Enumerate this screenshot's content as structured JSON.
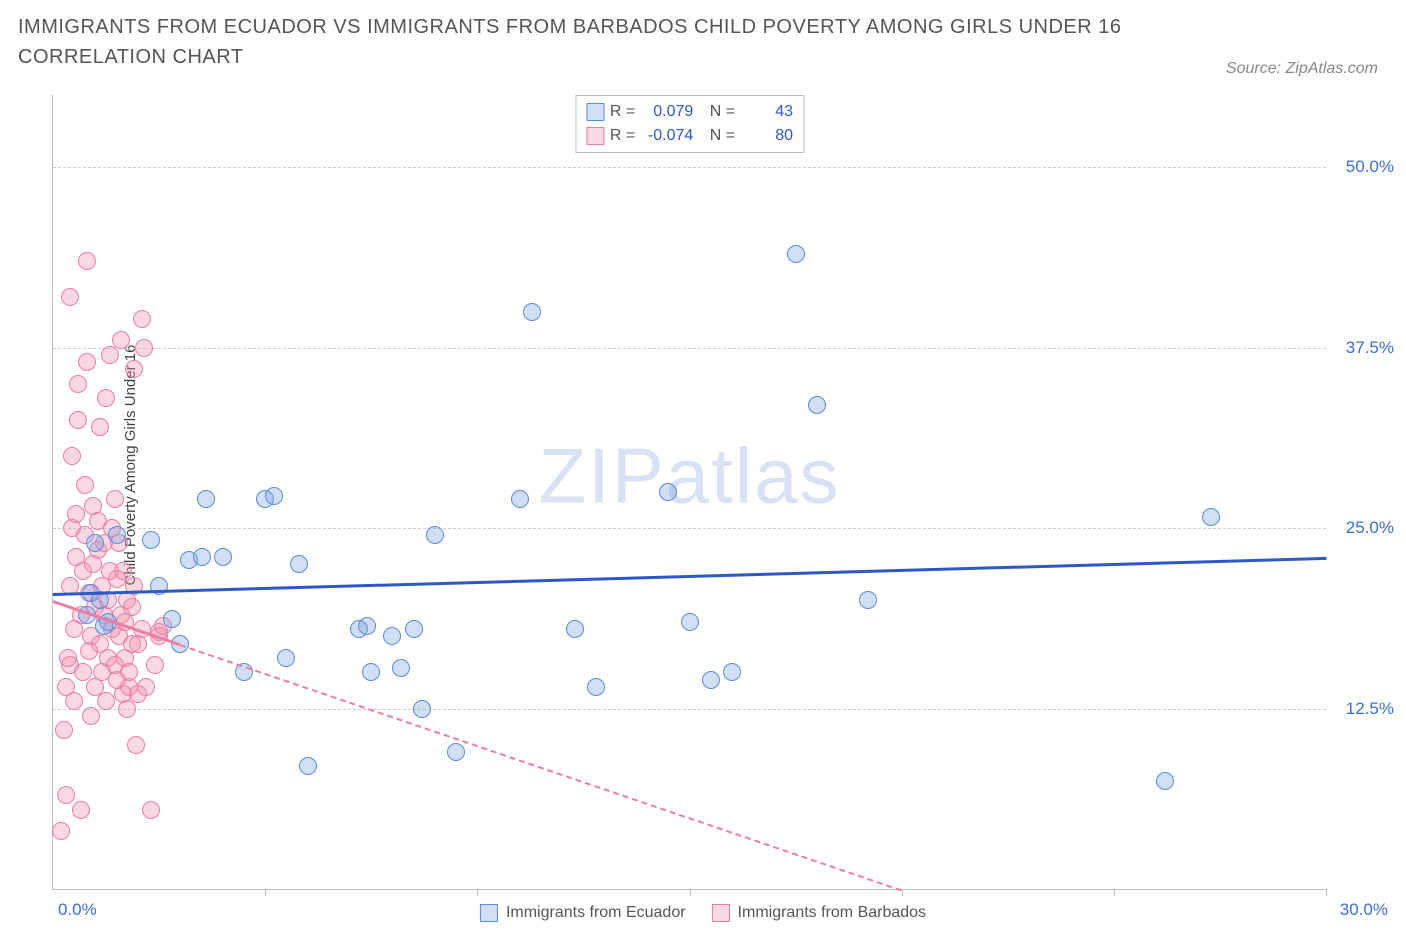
{
  "title": "IMMIGRANTS FROM ECUADOR VS IMMIGRANTS FROM BARBADOS CHILD POVERTY AMONG GIRLS UNDER 16 CORRELATION CHART",
  "source": "Source: ZipAtlas.com",
  "ylabel": "Child Poverty Among Girls Under 16",
  "watermark_a": "ZIP",
  "watermark_b": "atlas",
  "chart": {
    "type": "scatter",
    "xlim": [
      0,
      30
    ],
    "ylim": [
      0,
      55
    ],
    "x_tick_min": "0.0%",
    "x_tick_max": "30.0%",
    "y_ticks": [
      {
        "v": 12.5,
        "label": "12.5%"
      },
      {
        "v": 25.0,
        "label": "25.0%"
      },
      {
        "v": 37.5,
        "label": "37.5%"
      },
      {
        "v": 50.0,
        "label": "50.0%"
      }
    ],
    "x_tick_positions": [
      5,
      10,
      15,
      20,
      25,
      30
    ],
    "grid_color": "#cccccc",
    "axis_color": "#bbbbbb",
    "plot_bg": "#ffffff",
    "marker_radius": 9,
    "series": [
      {
        "name": "Immigrants from Ecuador",
        "fill": "rgba(120,160,230,0.35)",
        "stroke": "#5b8dd8",
        "R": "0.079",
        "N": "43",
        "trend": {
          "y_at_x0": 20.5,
          "y_at_xmax": 23,
          "style": "solid",
          "color": "#2d59c7"
        },
        "points": [
          [
            0.8,
            19
          ],
          [
            0.9,
            20.5
          ],
          [
            1.0,
            24
          ],
          [
            1.1,
            20
          ],
          [
            1.3,
            18.5
          ],
          [
            1.5,
            24.5
          ],
          [
            2.3,
            24.2
          ],
          [
            2.5,
            21
          ],
          [
            3.0,
            17
          ],
          [
            3.2,
            22.8
          ],
          [
            3.5,
            23
          ],
          [
            3.6,
            27
          ],
          [
            4.0,
            23
          ],
          [
            4.5,
            15
          ],
          [
            5.0,
            27
          ],
          [
            5.2,
            27.2
          ],
          [
            5.5,
            16
          ],
          [
            5.8,
            22.5
          ],
          [
            6.0,
            8.5
          ],
          [
            7.2,
            18
          ],
          [
            7.4,
            18.2
          ],
          [
            7.5,
            15
          ],
          [
            8.0,
            17.5
          ],
          [
            8.2,
            15.3
          ],
          [
            8.5,
            18
          ],
          [
            8.7,
            12.5
          ],
          [
            9.0,
            24.5
          ],
          [
            9.5,
            9.5
          ],
          [
            11.0,
            27
          ],
          [
            11.3,
            40
          ],
          [
            12.3,
            18
          ],
          [
            12.8,
            14
          ],
          [
            14.5,
            27.5
          ],
          [
            15.0,
            18.5
          ],
          [
            15.5,
            14.5
          ],
          [
            16.0,
            15
          ],
          [
            17.5,
            44
          ],
          [
            18.0,
            33.5
          ],
          [
            19.2,
            20
          ],
          [
            26.2,
            7.5
          ],
          [
            27.3,
            25.8
          ],
          [
            1.2,
            18.2
          ],
          [
            2.8,
            18.7
          ]
        ]
      },
      {
        "name": "Immigrants from Barbados",
        "fill": "rgba(240,140,170,0.35)",
        "stroke": "#e97fa5",
        "R": "-0.074",
        "N": "80",
        "trend": {
          "y_at_x0": 20.0,
          "y_at_xmax": 0,
          "x_end": 20,
          "style_solid_until": 3,
          "color": "#e97fa5"
        },
        "points": [
          [
            0.2,
            4
          ],
          [
            0.25,
            11
          ],
          [
            0.3,
            6.5
          ],
          [
            0.3,
            14
          ],
          [
            0.35,
            16
          ],
          [
            0.4,
            15.5
          ],
          [
            0.4,
            21
          ],
          [
            0.45,
            25
          ],
          [
            0.45,
            30
          ],
          [
            0.5,
            13
          ],
          [
            0.5,
            18
          ],
          [
            0.55,
            23
          ],
          [
            0.55,
            26
          ],
          [
            0.6,
            32.5
          ],
          [
            0.6,
            35
          ],
          [
            0.65,
            5.5
          ],
          [
            0.65,
            19
          ],
          [
            0.7,
            15
          ],
          [
            0.7,
            22
          ],
          [
            0.75,
            24.5
          ],
          [
            0.75,
            28
          ],
          [
            0.8,
            36.5
          ],
          [
            0.8,
            43.5
          ],
          [
            0.85,
            16.5
          ],
          [
            0.85,
            20.5
          ],
          [
            0.9,
            12
          ],
          [
            0.9,
            17.5
          ],
          [
            0.95,
            22.5
          ],
          [
            0.95,
            26.5
          ],
          [
            1.0,
            14
          ],
          [
            1.0,
            19.5
          ],
          [
            1.05,
            23.5
          ],
          [
            1.05,
            25.5
          ],
          [
            1.1,
            32
          ],
          [
            1.1,
            17
          ],
          [
            1.15,
            21
          ],
          [
            1.15,
            15
          ],
          [
            1.2,
            24
          ],
          [
            1.2,
            19
          ],
          [
            1.25,
            34
          ],
          [
            1.25,
            13
          ],
          [
            1.3,
            16
          ],
          [
            1.3,
            20
          ],
          [
            1.35,
            37
          ],
          [
            1.35,
            22
          ],
          [
            1.4,
            18
          ],
          [
            1.4,
            25
          ],
          [
            1.45,
            15.5
          ],
          [
            1.45,
            27
          ],
          [
            1.5,
            14.5
          ],
          [
            1.5,
            21.5
          ],
          [
            1.55,
            17.5
          ],
          [
            1.55,
            24
          ],
          [
            1.6,
            38
          ],
          [
            1.6,
            19
          ],
          [
            1.65,
            13.5
          ],
          [
            1.65,
            22
          ],
          [
            1.7,
            16
          ],
          [
            1.7,
            18.5
          ],
          [
            1.75,
            12.5
          ],
          [
            1.75,
            20
          ],
          [
            1.8,
            14
          ],
          [
            1.8,
            15
          ],
          [
            1.85,
            17
          ],
          [
            1.85,
            19.5
          ],
          [
            1.9,
            36
          ],
          [
            1.9,
            21
          ],
          [
            1.95,
            10
          ],
          [
            2.0,
            13.5
          ],
          [
            2.0,
            17
          ],
          [
            2.1,
            39.5
          ],
          [
            2.1,
            18
          ],
          [
            2.15,
            37.5
          ],
          [
            2.2,
            14
          ],
          [
            2.3,
            5.5
          ],
          [
            2.4,
            15.5
          ],
          [
            2.5,
            17.5
          ],
          [
            2.6,
            18.2
          ],
          [
            2.5,
            17.8
          ],
          [
            0.4,
            41
          ]
        ]
      }
    ],
    "legend_label_color": "#555555",
    "legend_value_color": "#2d59c7"
  }
}
